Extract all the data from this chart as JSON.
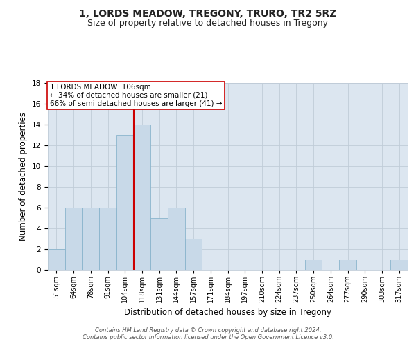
{
  "title": "1, LORDS MEADOW, TREGONY, TRURO, TR2 5RZ",
  "subtitle": "Size of property relative to detached houses in Tregony",
  "xlabel": "Distribution of detached houses by size in Tregony",
  "ylabel": "Number of detached properties",
  "categories": [
    "51sqm",
    "64sqm",
    "78sqm",
    "91sqm",
    "104sqm",
    "118sqm",
    "131sqm",
    "144sqm",
    "157sqm",
    "171sqm",
    "184sqm",
    "197sqm",
    "210sqm",
    "224sqm",
    "237sqm",
    "250sqm",
    "264sqm",
    "277sqm",
    "290sqm",
    "303sqm",
    "317sqm"
  ],
  "values": [
    2,
    6,
    6,
    6,
    13,
    14,
    5,
    6,
    3,
    0,
    0,
    0,
    0,
    0,
    0,
    1,
    0,
    1,
    0,
    0,
    1
  ],
  "bar_color": "#c8d9e8",
  "bar_edge_color": "#8ab4cc",
  "grid_color": "#c0ccd8",
  "bg_color": "#dce6f0",
  "vline_x": 4.5,
  "vline_color": "#cc0000",
  "annotation_text": "1 LORDS MEADOW: 106sqm\n← 34% of detached houses are smaller (21)\n66% of semi-detached houses are larger (41) →",
  "annotation_box_color": "#ffffff",
  "annotation_box_edge": "#cc0000",
  "ylim": [
    0,
    18
  ],
  "yticks": [
    0,
    2,
    4,
    6,
    8,
    10,
    12,
    14,
    16,
    18
  ],
  "footer": "Contains HM Land Registry data © Crown copyright and database right 2024.\nContains public sector information licensed under the Open Government Licence v3.0.",
  "title_fontsize": 10,
  "subtitle_fontsize": 9,
  "ylabel_fontsize": 8.5,
  "xlabel_fontsize": 8.5,
  "tick_fontsize": 7,
  "annotation_fontsize": 7.5,
  "footer_fontsize": 6
}
